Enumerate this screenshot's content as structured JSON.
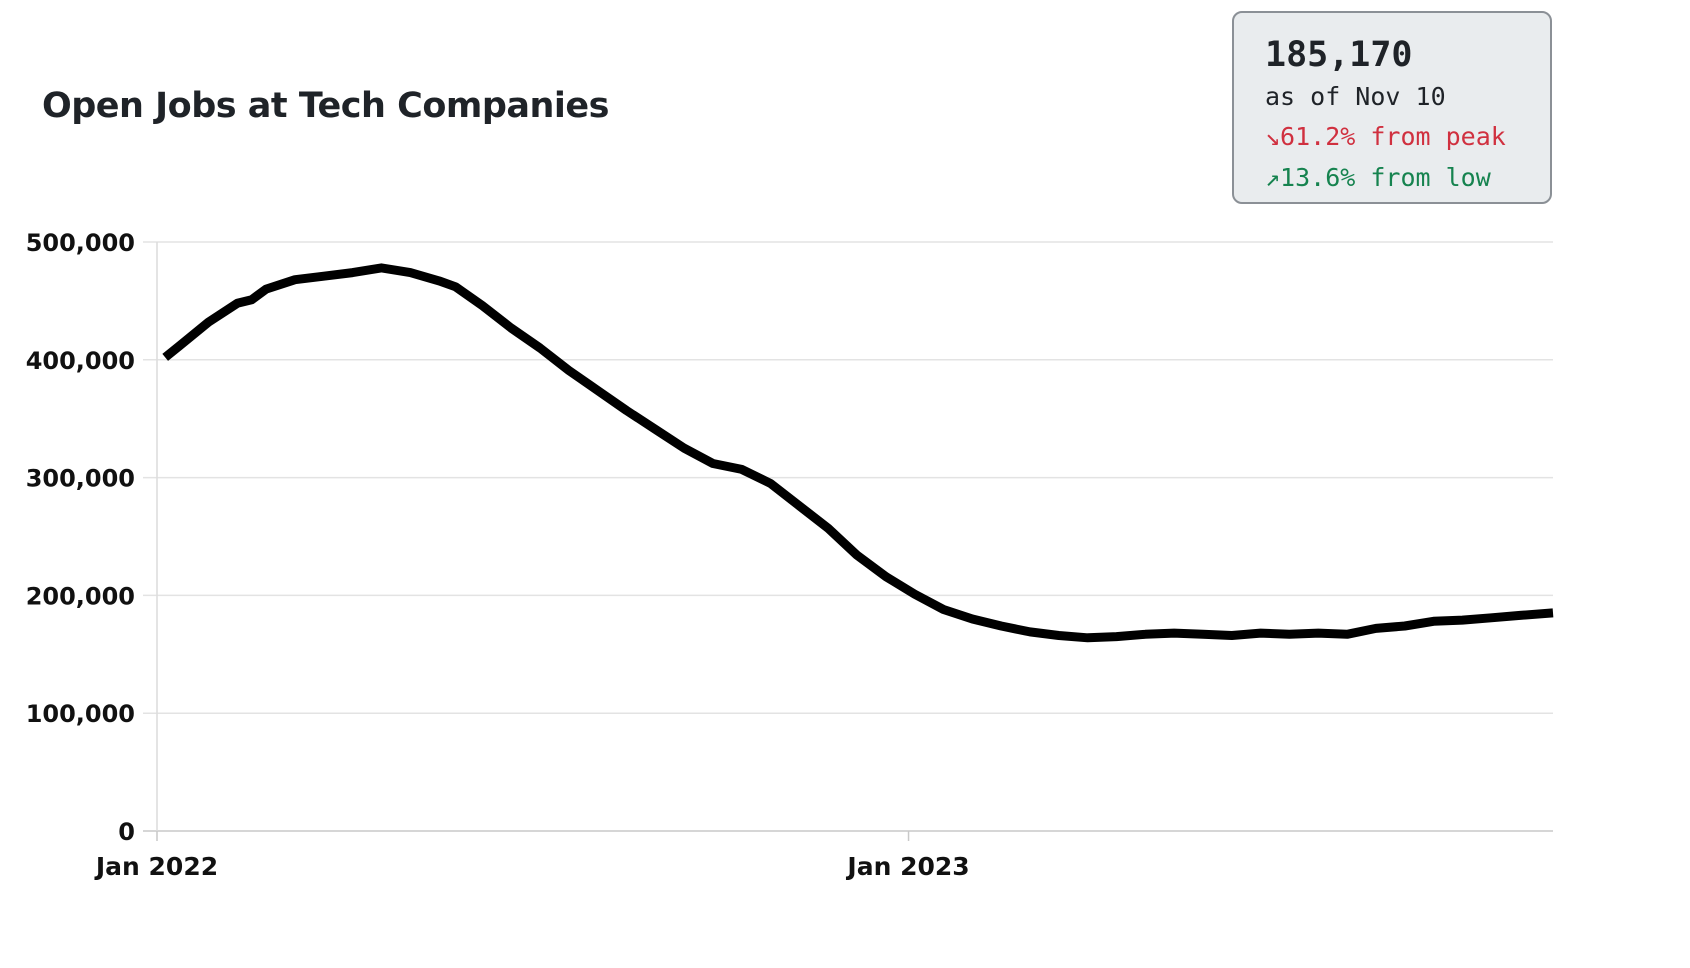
{
  "title": "Open Jobs at Tech Companies",
  "stats": {
    "value": "185,170",
    "as_of": "as of Nov 10",
    "from_peak": "↘61.2% from peak",
    "from_low": "↗13.6% from low",
    "peak_color": "#d0303f",
    "low_color": "#16834f"
  },
  "chart_data": {
    "type": "line",
    "title": "Open Jobs at Tech Companies",
    "xlabel": "",
    "ylabel": "",
    "ylim": [
      0,
      500000
    ],
    "xlim": [
      "2022-01-01",
      "2023-11-10"
    ],
    "y_ticks": [
      0,
      100000,
      200000,
      300000,
      400000,
      500000
    ],
    "y_tick_labels": [
      "0",
      "100,000",
      "200,000",
      "300,000",
      "400,000",
      "500,000"
    ],
    "x_ticks": [
      "2022-01-01",
      "2023-01-01"
    ],
    "x_tick_labels": [
      "Jan 2022",
      "Jan 2023"
    ],
    "grid": "horizontal",
    "line_color": "#000000",
    "series": [
      {
        "x": [
          "2022-01-05",
          "2022-01-12",
          "2022-01-26",
          "2022-02-09",
          "2022-02-16",
          "2022-02-23",
          "2022-03-09",
          "2022-03-23",
          "2022-04-06",
          "2022-04-20",
          "2022-05-04",
          "2022-05-18",
          "2022-05-26",
          "2022-06-08",
          "2022-06-22",
          "2022-07-06",
          "2022-07-20",
          "2022-08-03",
          "2022-08-17",
          "2022-08-31",
          "2022-09-14",
          "2022-09-28",
          "2022-10-12",
          "2022-10-26",
          "2022-11-09",
          "2022-11-23",
          "2022-12-07",
          "2022-12-21",
          "2023-01-04",
          "2023-01-18",
          "2023-02-01",
          "2023-02-15",
          "2023-03-01",
          "2023-03-15",
          "2023-03-29",
          "2023-04-12",
          "2023-04-26",
          "2023-05-10",
          "2023-05-24",
          "2023-06-07",
          "2023-06-21",
          "2023-07-05",
          "2023-07-19",
          "2023-08-02",
          "2023-08-16",
          "2023-08-30",
          "2023-09-13",
          "2023-09-27",
          "2023-10-11",
          "2023-10-25",
          "2023-11-10"
        ],
        "y": [
          402000,
          412000,
          432000,
          448000,
          451000,
          460000,
          468000,
          471000,
          474000,
          478000,
          474000,
          467000,
          462000,
          446000,
          427000,
          410000,
          391000,
          374000,
          357000,
          341000,
          325000,
          312000,
          307000,
          295000,
          276000,
          257000,
          234000,
          216000,
          201000,
          188000,
          180000,
          174000,
          169000,
          166000,
          164000,
          165000,
          167000,
          168000,
          167000,
          166000,
          168000,
          167000,
          168000,
          167000,
          172000,
          174000,
          178000,
          179000,
          181000,
          183000,
          185170
        ]
      }
    ]
  }
}
